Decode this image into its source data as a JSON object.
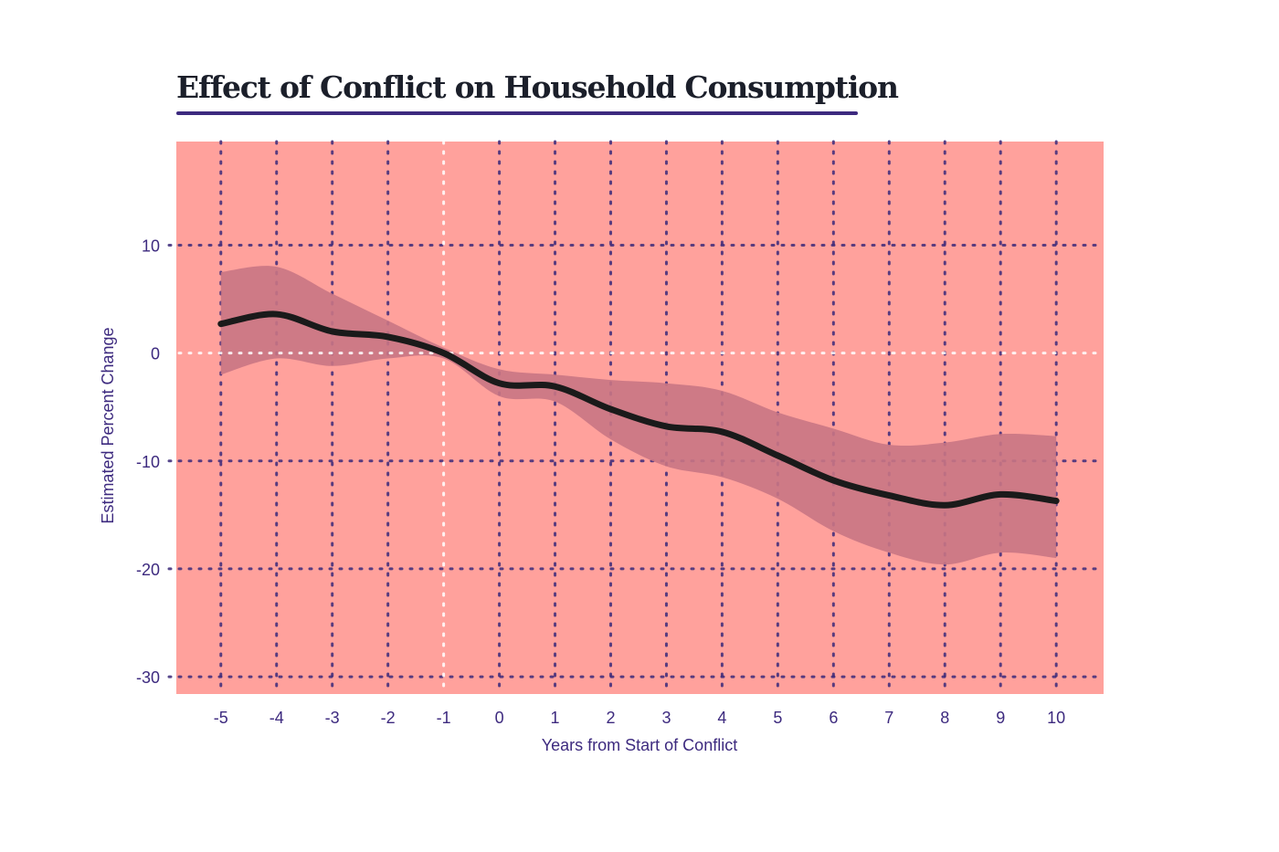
{
  "chart_data": {
    "type": "line",
    "title": "Effect of Conflict on Household Consumption",
    "xlabel": "Years from Start of Conflict",
    "ylabel": "Estimated Percent Change",
    "xlim": [
      -5.8,
      10.85
    ],
    "ylim": [
      -31.6,
      19.6
    ],
    "x_ticks": [
      -5,
      -4,
      -3,
      -2,
      -1,
      0,
      1,
      2,
      3,
      4,
      5,
      6,
      7,
      8,
      9,
      10
    ],
    "y_ticks": [
      10,
      0,
      -10,
      -20,
      -30
    ],
    "grid": true,
    "reference_lines": {
      "x": -1,
      "y": 0
    },
    "x": [
      -5,
      -4,
      -3,
      -2,
      -1,
      0,
      1,
      2,
      3,
      4,
      5,
      6,
      7,
      8,
      9,
      10
    ],
    "series": [
      {
        "values": [
          2.7,
          3.6,
          2.0,
          1.5,
          0.0,
          -2.8,
          -3.1,
          -5.2,
          -6.8,
          -7.3,
          -9.5,
          -11.8,
          -13.2,
          -14.1,
          -13.1,
          -13.7
        ]
      }
    ],
    "confidence_band": {
      "upper": [
        7.5,
        8.0,
        5.5,
        3.0,
        0.5,
        -1.5,
        -2.0,
        -2.5,
        -2.8,
        -3.5,
        -5.5,
        -7.0,
        -8.5,
        -8.3,
        -7.5,
        -7.7
      ],
      "lower": [
        -2.0,
        -0.5,
        -1.2,
        -0.5,
        -0.5,
        -4.0,
        -4.5,
        -8.0,
        -10.5,
        -11.5,
        -13.5,
        -16.5,
        -18.5,
        -19.6,
        -18.5,
        -19.0
      ]
    },
    "colors": {
      "background": "#ffa19c",
      "band": "#c97584",
      "line": "#1a1a1a",
      "grid": "#3b2a7a",
      "reference": "#ffffff",
      "text": "#3d2a7f",
      "title": "#1b1f2a"
    }
  }
}
